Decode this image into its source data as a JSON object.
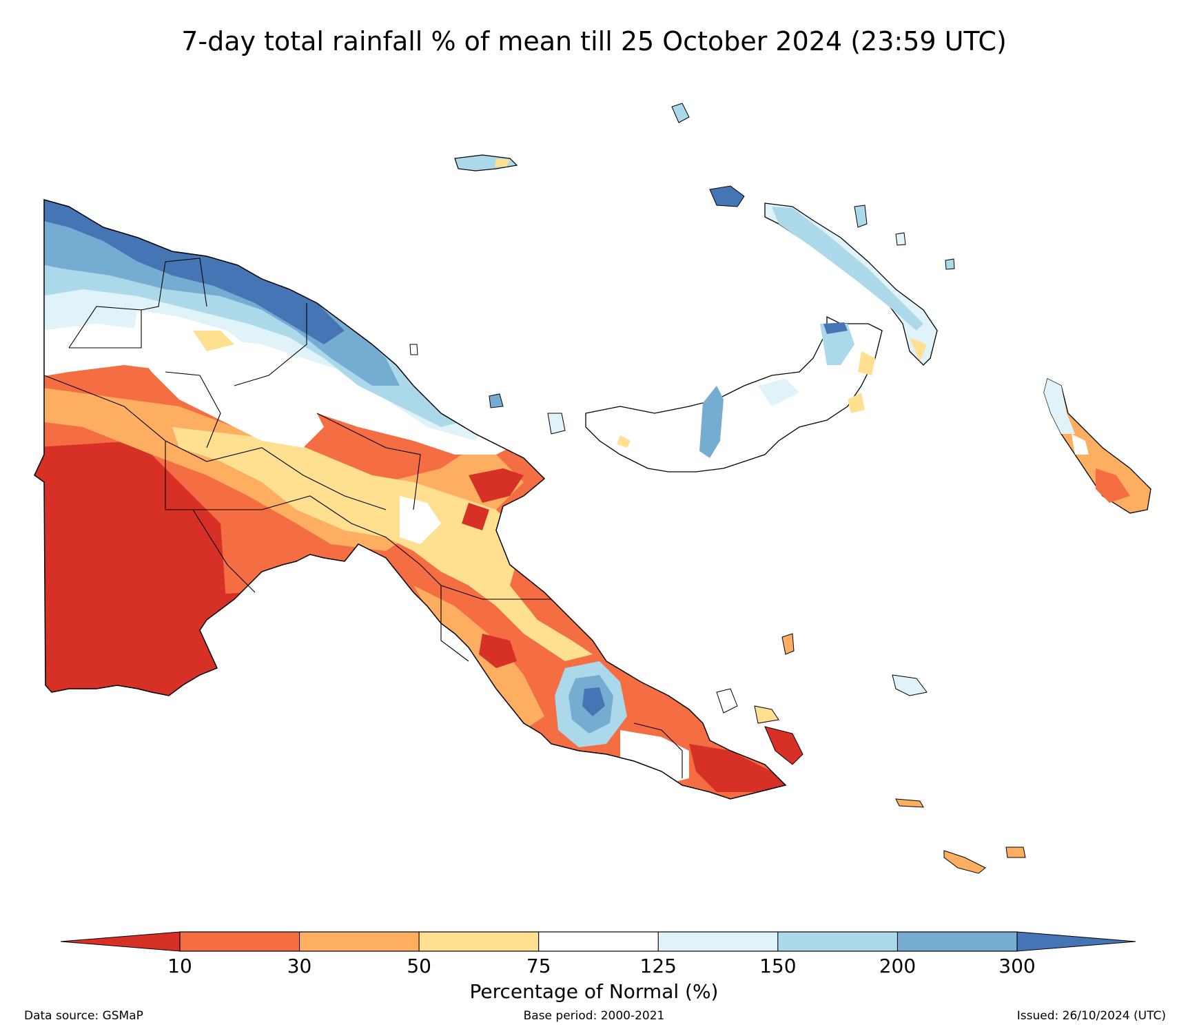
{
  "title": "7-day total rainfall % of mean till 25 October 2024 (23:59 UTC)",
  "colorbar": {
    "title": "Percentage of Normal (%)",
    "ticks": [
      "10",
      "30",
      "50",
      "75",
      "125",
      "150",
      "200",
      "300"
    ],
    "under_color": "#d73027",
    "over_color": "#4575b4",
    "bins": [
      {
        "from": "10",
        "to": "30",
        "color": "#f46d43"
      },
      {
        "from": "30",
        "to": "50",
        "color": "#fdae61"
      },
      {
        "from": "50",
        "to": "75",
        "color": "#fee090"
      },
      {
        "from": "75",
        "to": "125",
        "color": "#ffffff"
      },
      {
        "from": "125",
        "to": "150",
        "color": "#e0f3f8"
      },
      {
        "from": "150",
        "to": "200",
        "color": "#abd9e9"
      },
      {
        "from": "200",
        "to": "300",
        "color": "#74add1"
      }
    ]
  },
  "footer": {
    "source": "Data source: GSMaP",
    "base_period": "Base period: 2000-2021",
    "issued": "Issued: 26/10/2024 (UTC)"
  }
}
